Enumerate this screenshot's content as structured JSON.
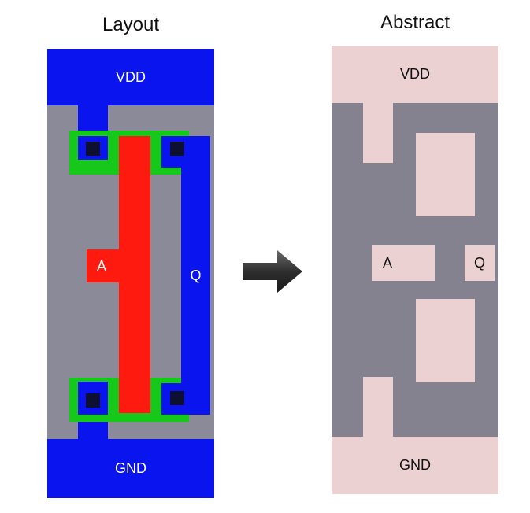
{
  "layout_panel": {
    "title": "Layout",
    "vdd_label": "VDD",
    "gnd_label": "GND",
    "input_label": "A",
    "output_label": "Q"
  },
  "abstract_panel": {
    "title": "Abstract",
    "vdd_label": "VDD",
    "gnd_label": "GND",
    "input_label": "A",
    "output_label": "Q"
  },
  "colors": {
    "metal_blue": "#0a14ee",
    "poly_red": "#ff1a10",
    "diffusion_green": "#15c81a",
    "substrate_gray": "#8a8a99",
    "contact_black": "#0d1030",
    "abstract_pink": "#ebd1d1",
    "abstract_gray": "#85828f",
    "arrow_dark": "#3a3a3a"
  }
}
